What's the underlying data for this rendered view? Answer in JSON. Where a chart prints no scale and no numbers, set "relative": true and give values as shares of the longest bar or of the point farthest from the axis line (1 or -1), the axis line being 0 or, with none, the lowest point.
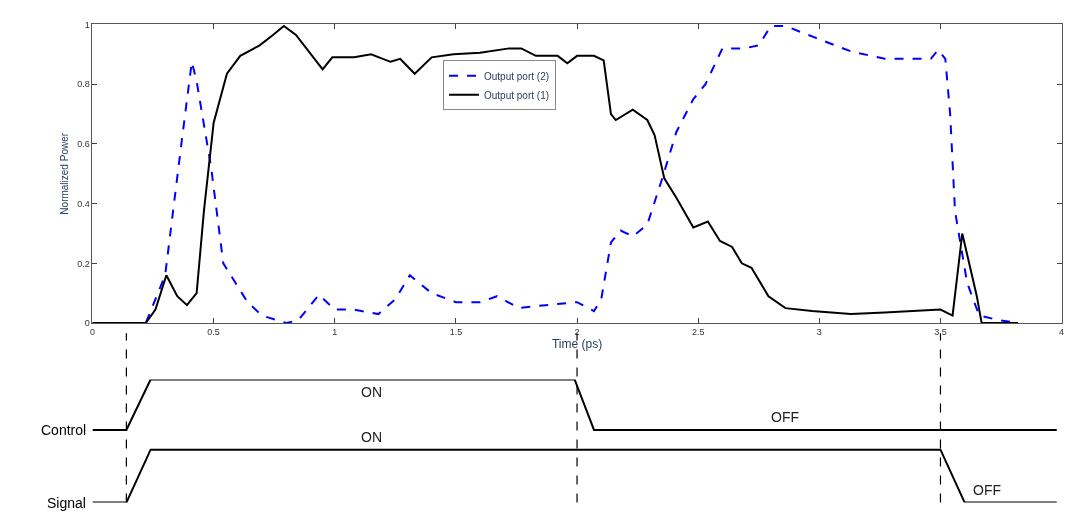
{
  "chart_data": [
    {
      "type": "line",
      "xlabel": "Time (ps)",
      "ylabel": "Normalized Power",
      "xlim": [
        0,
        4
      ],
      "ylim": [
        0,
        1
      ],
      "xticks": [
        0,
        0.5,
        1,
        1.5,
        2,
        2.5,
        3,
        3.5,
        4
      ],
      "yticks": [
        0,
        0.2,
        0.4,
        0.6,
        0.8,
        1
      ],
      "legend": "top",
      "marker": "none",
      "series": [
        {
          "name": "Output port (2)",
          "color": "#0000ff",
          "line_style": "dashed",
          "x": [
            0,
            0.22,
            0.3,
            0.37,
            0.41,
            0.43,
            0.49,
            0.54,
            0.64,
            0.7,
            0.8,
            0.85,
            0.935,
            1.0,
            1.08,
            1.18,
            1.25,
            1.31,
            1.4,
            1.5,
            1.6,
            1.67,
            1.76,
            1.87,
            2.0,
            2.07,
            2.1,
            2.14,
            2.18,
            2.23,
            2.29,
            2.35,
            2.41,
            2.48,
            2.53,
            2.6,
            2.69,
            2.75,
            2.8,
            2.86,
            2.97,
            3.13,
            3.27,
            3.46,
            3.49,
            3.52,
            3.54,
            3.56,
            3.61,
            3.66,
            3.74,
            3.82
          ],
          "values": [
            0,
            0,
            0.16,
            0.62,
            0.875,
            0.81,
            0.52,
            0.2,
            0.07,
            0.025,
            0,
            0.01,
            0.095,
            0.045,
            0.045,
            0.03,
            0.08,
            0.16,
            0.1,
            0.07,
            0.07,
            0.09,
            0.05,
            0.06,
            0.07,
            0.04,
            0.08,
            0.27,
            0.31,
            0.29,
            0.33,
            0.48,
            0.64,
            0.75,
            0.8,
            0.92,
            0.92,
            0.93,
            0.995,
            0.995,
            0.96,
            0.91,
            0.885,
            0.885,
            0.915,
            0.885,
            0.7,
            0.375,
            0.135,
            0.025,
            0.01,
            0
          ]
        },
        {
          "name": "Output port (1)",
          "color": "#000000",
          "line_style": "solid",
          "x": [
            0,
            0.22,
            0.26,
            0.305,
            0.35,
            0.39,
            0.43,
            0.46,
            0.5,
            0.555,
            0.61,
            0.69,
            0.745,
            0.79,
            0.84,
            0.95,
            0.99,
            1.08,
            1.15,
            1.23,
            1.27,
            1.33,
            1.4,
            1.49,
            1.6,
            1.72,
            1.77,
            1.83,
            1.92,
            1.96,
            2.0,
            2.07,
            2.11,
            2.14,
            2.16,
            2.23,
            2.29,
            2.32,
            2.36,
            2.41,
            2.48,
            2.54,
            2.59,
            2.64,
            2.68,
            2.72,
            2.79,
            2.86,
            2.97,
            3.13,
            3.27,
            3.5,
            3.55,
            3.59,
            3.65,
            3.67,
            3.82
          ],
          "values": [
            0,
            0,
            0.045,
            0.16,
            0.09,
            0.06,
            0.1,
            0.375,
            0.67,
            0.835,
            0.895,
            0.93,
            0.965,
            0.995,
            0.965,
            0.85,
            0.89,
            0.89,
            0.9,
            0.875,
            0.885,
            0.835,
            0.89,
            0.9,
            0.905,
            0.92,
            0.92,
            0.895,
            0.895,
            0.87,
            0.895,
            0.895,
            0.88,
            0.7,
            0.68,
            0.715,
            0.68,
            0.63,
            0.485,
            0.42,
            0.32,
            0.34,
            0.275,
            0.255,
            0.2,
            0.185,
            0.09,
            0.05,
            0.04,
            0.03,
            0.035,
            0.045,
            0.025,
            0.3,
            0.09,
            0,
            0
          ]
        }
      ]
    },
    {
      "type": "line",
      "relative": true,
      "xlim": [
        0,
        4
      ],
      "tick_labels": false,
      "legend": false,
      "marker": "none",
      "series": [
        {
          "name": "Control",
          "color": "#000000",
          "x": [
            0,
            0.14,
            0.24,
            1.99,
            2.07,
            3.98
          ],
          "values": [
            0.59,
            0.59,
            1,
            1,
            0.59,
            0.59
          ]
        },
        {
          "name": "Signal",
          "color": "#000000",
          "x": [
            0,
            0.14,
            0.24,
            3.5,
            3.6,
            3.98
          ],
          "values": [
            0,
            0,
            0.43,
            0.43,
            0,
            0
          ]
        }
      ],
      "ref_lines": [
        {
          "axis": "x",
          "value": 0.14,
          "line_style": "dashed",
          "color": "#000000"
        },
        {
          "axis": "x",
          "value": 2.0,
          "line_style": "dashed",
          "color": "#000000"
        },
        {
          "axis": "x",
          "value": 3.5,
          "line_style": "dashed",
          "color": "#000000"
        }
      ],
      "annotations": [
        {
          "text": "ON",
          "x": 1.15,
          "y": 1
        },
        {
          "text": "OFF",
          "x": 2.86,
          "y": 0.59
        },
        {
          "text": "ON",
          "x": 1.15,
          "y": 0.43
        },
        {
          "text": "OFF",
          "x": 3.69,
          "y": 0
        }
      ]
    }
  ]
}
